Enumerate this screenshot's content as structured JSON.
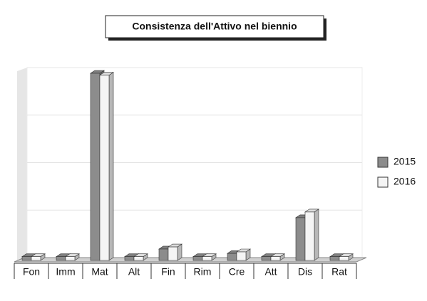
{
  "chart_data": {
    "type": "bar3d",
    "title": "Consistenza dell'Attivo nel biennio",
    "categories": [
      "Fon",
      "Imm",
      "Mat",
      "Alt",
      "Fin",
      "Rim",
      "Cre",
      "Att",
      "Dis",
      "Rat"
    ],
    "series": [
      {
        "name": "2015",
        "color": "#8c8c8c",
        "values": [
          0.5,
          0.5,
          97,
          0.5,
          4.5,
          0.5,
          2.2,
          0.5,
          21,
          0.5
        ]
      },
      {
        "name": "2016",
        "color": "#f4f4f4",
        "values": [
          0.5,
          0.5,
          96,
          0.5,
          5.6,
          0.5,
          3,
          0.5,
          24,
          0.5
        ]
      }
    ],
    "ylim": [
      0,
      100
    ],
    "yticks": [
      0,
      25,
      50,
      75,
      100
    ],
    "grid": true,
    "legend": "right"
  }
}
